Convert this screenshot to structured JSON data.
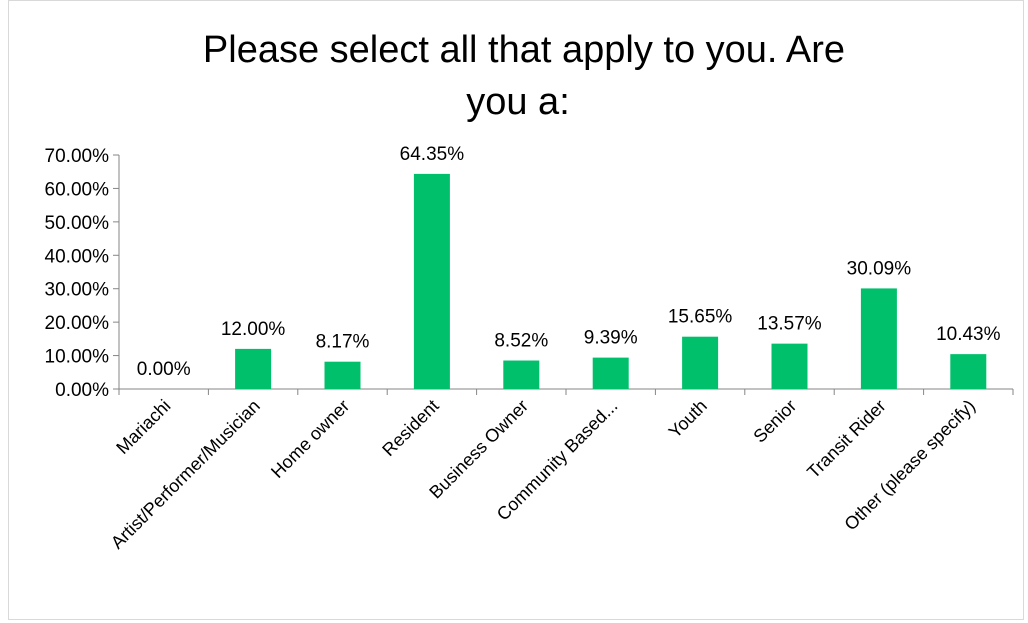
{
  "chart_data": {
    "type": "bar",
    "title_lines": [
      "Please select all that apply to you. Are",
      "you a:"
    ],
    "categories": [
      "Mariachi",
      "Artist/Performer/Musician",
      "Home owner",
      "Resident",
      "Business Owner",
      "Community Based...",
      "Youth",
      "Senior",
      "Transit Rider",
      "Other (please specify)"
    ],
    "values": [
      0.0,
      12.0,
      8.17,
      64.35,
      8.52,
      9.39,
      15.65,
      13.57,
      30.09,
      10.43
    ],
    "data_labels": [
      "0.00%",
      "12.00%",
      "8.17%",
      "64.35%",
      "8.52%",
      "9.39%",
      "15.65%",
      "13.57%",
      "30.09%",
      "10.43%"
    ],
    "y_ticks": [
      0,
      10,
      20,
      30,
      40,
      50,
      60,
      70
    ],
    "y_tick_labels": [
      "0.00%",
      "10.00%",
      "20.00%",
      "30.00%",
      "40.00%",
      "50.00%",
      "60.00%",
      "70.00%"
    ],
    "ylim": [
      0,
      70
    ],
    "grid": false,
    "legend": "none",
    "bar_color": "#00c06b"
  }
}
